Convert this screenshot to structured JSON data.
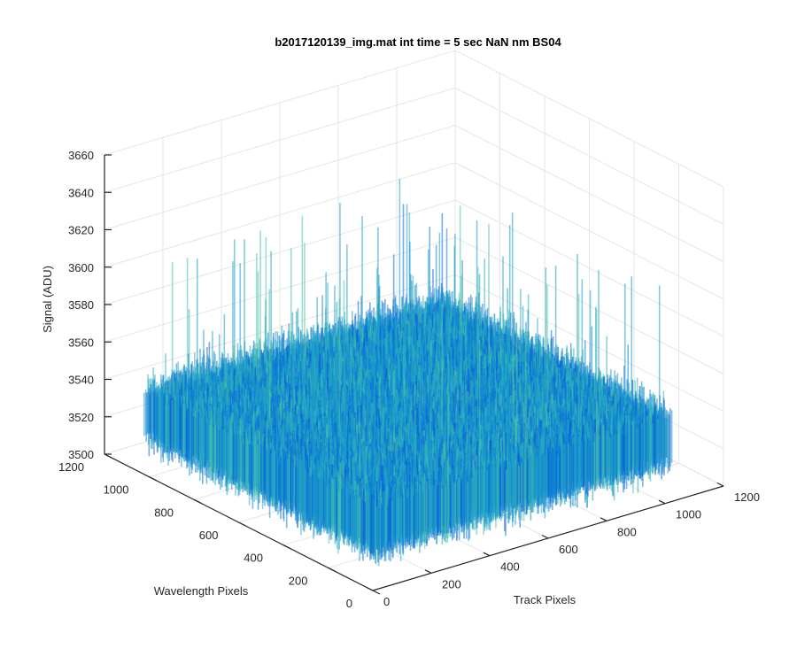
{
  "chart_data": {
    "type": "surface",
    "title": "b2017120139_img.mat int time = 5 sec  NaN nm BS04",
    "xlabel": "Track Pixels",
    "ylabel": "Wavelength Pixels",
    "zlabel": "Signal (ADU)",
    "xlim": [
      0,
      1200
    ],
    "ylim": [
      0,
      1200
    ],
    "zlim": [
      3500,
      3660
    ],
    "x_ticks": [
      "0",
      "200",
      "400",
      "600",
      "800",
      "1000",
      "1200"
    ],
    "y_ticks": [
      "0",
      "200",
      "400",
      "600",
      "800",
      "1000",
      "1200"
    ],
    "z_ticks": [
      "3500",
      "3520",
      "3540",
      "3560",
      "3580",
      "3600",
      "3620",
      "3640",
      "3660"
    ],
    "data_extent": {
      "x": [
        1,
        1024
      ],
      "y": [
        1,
        1024
      ]
    },
    "signal_level": 3535,
    "signal_noise_range": [
      3505,
      3630
    ],
    "grid": true,
    "colormap": [
      "#0a62d8",
      "#0f82d4",
      "#1e9ec8",
      "#2cb0bf",
      "#4cc2a8"
    ]
  }
}
